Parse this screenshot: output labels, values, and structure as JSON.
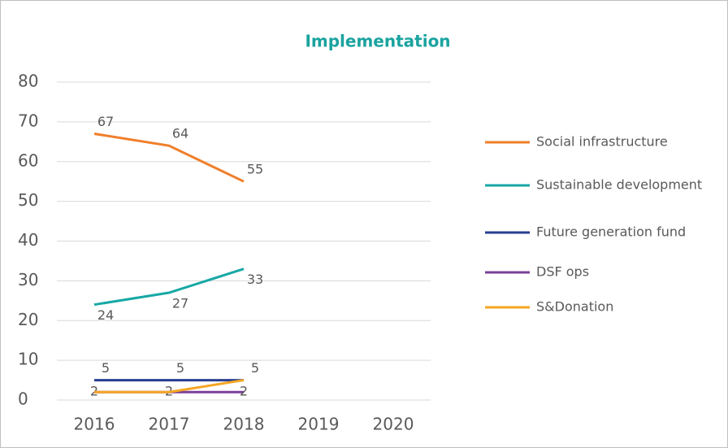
{
  "chart_data": {
    "type": "line",
    "title": "Implementation",
    "categories": [
      "2016",
      "2017",
      "2018",
      "2019",
      "2020"
    ],
    "ylim": [
      0,
      80
    ],
    "yticks": [
      0,
      10,
      20,
      30,
      40,
      50,
      60,
      70,
      80
    ],
    "grid": true,
    "legend": "right",
    "series": [
      {
        "name": "Social infrastructure",
        "color": "#f07f2b",
        "values": [
          67,
          64,
          55,
          null,
          null
        ],
        "labels": "above"
      },
      {
        "name": "Sustainable development",
        "color": "#17a8a5",
        "values": [
          24,
          27,
          33,
          null,
          null
        ],
        "labels": "below"
      },
      {
        "name": "Future generation fund",
        "color": "#283e8f",
        "values": [
          5,
          5,
          5,
          null,
          null
        ],
        "labels": "above"
      },
      {
        "name": "DSF ops",
        "color": "#7b3f98",
        "values": [
          2,
          2,
          2,
          null,
          null
        ],
        "labels": "center"
      },
      {
        "name": "S&Donation",
        "color": "#f5a623",
        "values": [
          2,
          2,
          5,
          null,
          null
        ],
        "labels": "none"
      }
    ]
  }
}
